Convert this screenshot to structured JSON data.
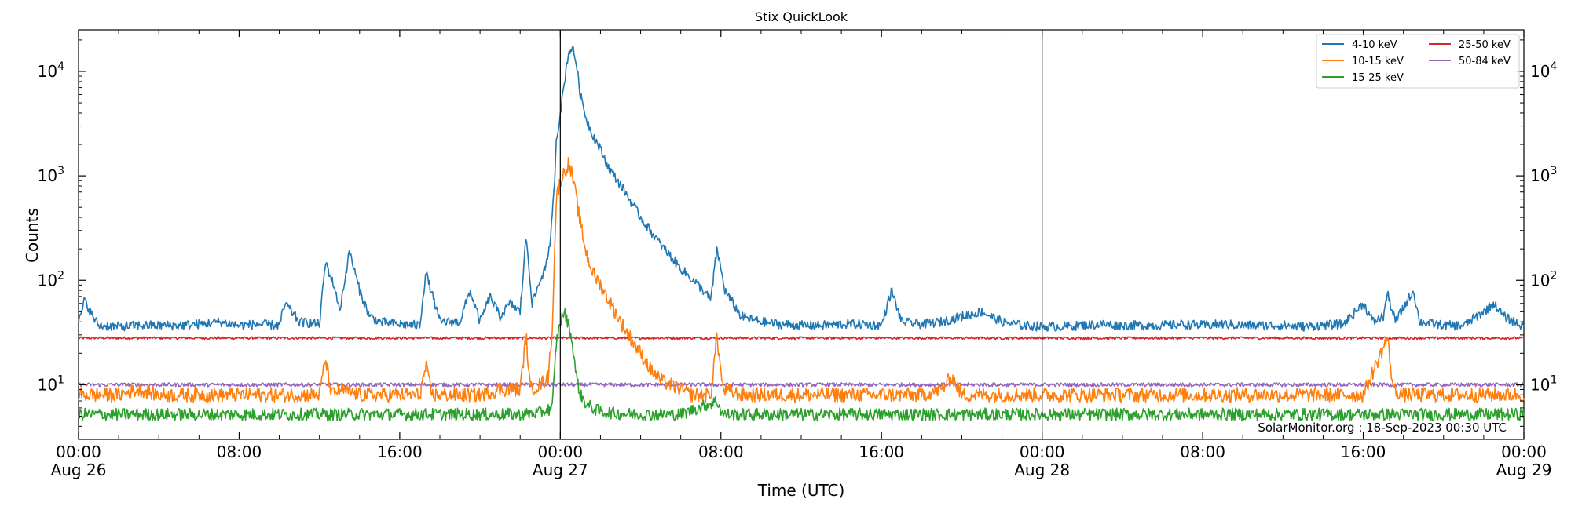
{
  "chart_data": {
    "type": "line",
    "title": "Stix QuickLook",
    "xlabel": "Time (UTC)",
    "ylabel": "Counts",
    "yscale": "log",
    "ylim": [
      3,
      25000
    ],
    "x_unit": "hours since Aug 26 00:00 UTC",
    "xlim": [
      0,
      72
    ],
    "x_ticks": [
      {
        "x": 0,
        "label": "00:00",
        "date": "Aug 26"
      },
      {
        "x": 8,
        "label": "08:00",
        "date": ""
      },
      {
        "x": 16,
        "label": "16:00",
        "date": ""
      },
      {
        "x": 24,
        "label": "00:00",
        "date": "Aug 27"
      },
      {
        "x": 32,
        "label": "08:00",
        "date": ""
      },
      {
        "x": 40,
        "label": "16:00",
        "date": ""
      },
      {
        "x": 48,
        "label": "00:00",
        "date": "Aug 28"
      },
      {
        "x": 56,
        "label": "08:00",
        "date": ""
      },
      {
        "x": 64,
        "label": "16:00",
        "date": ""
      },
      {
        "x": 72,
        "label": "00:00",
        "date": "Aug 29"
      }
    ],
    "y_ticks": [
      {
        "value": 10,
        "base": "10",
        "exp": "1"
      },
      {
        "value": 100,
        "base": "10",
        "exp": "2"
      },
      {
        "value": 1000,
        "base": "10",
        "exp": "3"
      },
      {
        "value": 10000,
        "base": "10",
        "exp": "4"
      }
    ],
    "vertical_lines_x": [
      24,
      48
    ],
    "legend_position": "top-right",
    "annotation": "SolarMonitor.org : 18-Sep-2023 00:30 UTC",
    "series": [
      {
        "name": "4-10 keV",
        "color": "#1f77b4",
        "points": [
          [
            0,
            38
          ],
          [
            0.3,
            65
          ],
          [
            0.7,
            45
          ],
          [
            1,
            37
          ],
          [
            2,
            36
          ],
          [
            3,
            37
          ],
          [
            4,
            37
          ],
          [
            5,
            37
          ],
          [
            6,
            38
          ],
          [
            7,
            40
          ],
          [
            8,
            37
          ],
          [
            9,
            38
          ],
          [
            10,
            37
          ],
          [
            10.3,
            60
          ],
          [
            11,
            40
          ],
          [
            12,
            38
          ],
          [
            12.3,
            150
          ],
          [
            12.8,
            80
          ],
          [
            13,
            50
          ],
          [
            13.5,
            190
          ],
          [
            14,
            80
          ],
          [
            14.5,
            45
          ],
          [
            15,
            40
          ],
          [
            16,
            38
          ],
          [
            17,
            37
          ],
          [
            17.3,
            120
          ],
          [
            18,
            40
          ],
          [
            19,
            40
          ],
          [
            19.5,
            80
          ],
          [
            20,
            40
          ],
          [
            20.5,
            70
          ],
          [
            21,
            45
          ],
          [
            21.5,
            60
          ],
          [
            22,
            50
          ],
          [
            22.3,
            270
          ],
          [
            22.6,
            60
          ],
          [
            23,
            100
          ],
          [
            23.4,
            160
          ],
          [
            23.6,
            400
          ],
          [
            23.7,
            800
          ],
          [
            23.8,
            2200
          ],
          [
            24,
            4000
          ],
          [
            24.4,
            15000
          ],
          [
            24.6,
            17000
          ],
          [
            24.8,
            12000
          ],
          [
            25,
            6000
          ],
          [
            25.3,
            3500
          ],
          [
            25.6,
            2500
          ],
          [
            26,
            1800
          ],
          [
            26.4,
            1200
          ],
          [
            27,
            820
          ],
          [
            28,
            400
          ],
          [
            29,
            220
          ],
          [
            30,
            130
          ],
          [
            31,
            85
          ],
          [
            31.5,
            65
          ],
          [
            31.8,
            200
          ],
          [
            32.2,
            80
          ],
          [
            33,
            45
          ],
          [
            34,
            40
          ],
          [
            35,
            38
          ],
          [
            36,
            37
          ],
          [
            37,
            37
          ],
          [
            38,
            38
          ],
          [
            39,
            38
          ],
          [
            40,
            37
          ],
          [
            40.5,
            80
          ],
          [
            41,
            40
          ],
          [
            42,
            38
          ],
          [
            43,
            40
          ],
          [
            44,
            45
          ],
          [
            45,
            50
          ],
          [
            46,
            40
          ],
          [
            47,
            37
          ],
          [
            48,
            36
          ],
          [
            49,
            36
          ],
          [
            50,
            37
          ],
          [
            51,
            38
          ],
          [
            52,
            37
          ],
          [
            53,
            37
          ],
          [
            54,
            37
          ],
          [
            55,
            38
          ],
          [
            56,
            37
          ],
          [
            57,
            38
          ],
          [
            58,
            37
          ],
          [
            59,
            37
          ],
          [
            60,
            37
          ],
          [
            61,
            36
          ],
          [
            62,
            37
          ],
          [
            63,
            38
          ],
          [
            64,
            60
          ],
          [
            64.5,
            40
          ],
          [
            65,
            45
          ],
          [
            65.2,
            75
          ],
          [
            65.6,
            40
          ],
          [
            66.5,
            80
          ],
          [
            66.8,
            40
          ],
          [
            68,
            37
          ],
          [
            69,
            37
          ],
          [
            70,
            50
          ],
          [
            70.5,
            60
          ],
          [
            71,
            45
          ],
          [
            72,
            36
          ]
        ]
      },
      {
        "name": "10-15 keV",
        "color": "#ff7f0e",
        "points": [
          [
            0,
            8
          ],
          [
            1,
            8
          ],
          [
            2,
            8
          ],
          [
            3,
            9
          ],
          [
            4,
            8
          ],
          [
            5,
            8
          ],
          [
            6,
            8
          ],
          [
            7,
            8
          ],
          [
            8,
            8
          ],
          [
            9,
            8
          ],
          [
            10,
            8
          ],
          [
            11,
            8
          ],
          [
            12,
            8
          ],
          [
            12.3,
            18
          ],
          [
            12.6,
            8
          ],
          [
            13,
            9
          ],
          [
            14,
            8
          ],
          [
            15,
            8
          ],
          [
            16,
            8
          ],
          [
            17,
            8
          ],
          [
            17.3,
            15
          ],
          [
            17.6,
            8
          ],
          [
            18,
            8
          ],
          [
            19,
            8
          ],
          [
            20,
            8
          ],
          [
            21,
            9
          ],
          [
            22,
            9
          ],
          [
            22.3,
            30
          ],
          [
            22.5,
            9
          ],
          [
            23,
            10
          ],
          [
            23.4,
            12
          ],
          [
            23.6,
            35
          ],
          [
            23.7,
            150
          ],
          [
            23.8,
            600
          ],
          [
            24,
            900
          ],
          [
            24.4,
            1300
          ],
          [
            24.6,
            1000
          ],
          [
            24.8,
            600
          ],
          [
            25,
            350
          ],
          [
            25.3,
            180
          ],
          [
            25.6,
            120
          ],
          [
            26,
            90
          ],
          [
            26.5,
            60
          ],
          [
            27,
            40
          ],
          [
            27.5,
            28
          ],
          [
            28,
            20
          ],
          [
            28.5,
            14
          ],
          [
            29,
            11
          ],
          [
            30,
            9
          ],
          [
            30.5,
            8
          ],
          [
            31,
            8
          ],
          [
            31.5,
            8
          ],
          [
            31.8,
            30
          ],
          [
            32.1,
            9
          ],
          [
            33,
            8
          ],
          [
            34,
            8
          ],
          [
            35,
            8
          ],
          [
            36,
            8
          ],
          [
            37,
            8
          ],
          [
            38,
            8
          ],
          [
            39,
            8
          ],
          [
            40,
            8
          ],
          [
            41,
            8
          ],
          [
            42,
            8
          ],
          [
            43,
            9
          ],
          [
            43.5,
            12
          ],
          [
            44,
            8
          ],
          [
            45,
            8
          ],
          [
            46,
            8
          ],
          [
            47,
            8
          ],
          [
            48,
            8
          ],
          [
            50,
            8
          ],
          [
            52,
            8
          ],
          [
            54,
            8
          ],
          [
            56,
            8
          ],
          [
            58,
            8
          ],
          [
            60,
            8
          ],
          [
            62,
            8
          ],
          [
            64,
            8
          ],
          [
            65.2,
            28
          ],
          [
            65.5,
            9
          ],
          [
            66,
            8
          ],
          [
            68,
            8
          ],
          [
            70,
            8
          ],
          [
            72,
            8
          ]
        ]
      },
      {
        "name": "15-25 keV",
        "color": "#2ca02c",
        "points": [
          [
            0,
            5.2
          ],
          [
            2,
            5.2
          ],
          [
            4,
            5.2
          ],
          [
            6,
            5.2
          ],
          [
            8,
            5.2
          ],
          [
            10,
            5.2
          ],
          [
            12,
            5.2
          ],
          [
            14,
            5.2
          ],
          [
            16,
            5.2
          ],
          [
            18,
            5.2
          ],
          [
            20,
            5.2
          ],
          [
            22,
            5.2
          ],
          [
            23,
            5.4
          ],
          [
            23.6,
            6
          ],
          [
            23.7,
            12
          ],
          [
            23.8,
            25
          ],
          [
            24,
            40
          ],
          [
            24.2,
            50
          ],
          [
            24.4,
            38
          ],
          [
            24.6,
            25
          ],
          [
            24.8,
            12
          ],
          [
            25,
            8
          ],
          [
            25.3,
            6.5
          ],
          [
            25.6,
            6
          ],
          [
            26,
            5.5
          ],
          [
            27,
            5.3
          ],
          [
            28,
            5.2
          ],
          [
            30,
            5.2
          ],
          [
            31.8,
            7
          ],
          [
            32.1,
            5.2
          ],
          [
            34,
            5.2
          ],
          [
            36,
            5.2
          ],
          [
            38,
            5.2
          ],
          [
            40,
            5.2
          ],
          [
            42,
            5.2
          ],
          [
            44,
            5.2
          ],
          [
            46,
            5.2
          ],
          [
            48,
            5.2
          ],
          [
            50,
            5.2
          ],
          [
            52,
            5.2
          ],
          [
            54,
            5.2
          ],
          [
            56,
            5.2
          ],
          [
            58,
            5.2
          ],
          [
            60,
            5.2
          ],
          [
            62,
            5.2
          ],
          [
            64,
            5.2
          ],
          [
            66,
            5.2
          ],
          [
            68,
            5.2
          ],
          [
            70,
            5.2
          ],
          [
            72,
            5.2
          ]
        ]
      },
      {
        "name": "25-50 keV",
        "color": "#d62728",
        "points": [
          [
            0,
            28
          ],
          [
            6,
            28
          ],
          [
            12,
            28
          ],
          [
            18,
            28
          ],
          [
            24,
            28
          ],
          [
            30,
            28
          ],
          [
            36,
            28
          ],
          [
            42,
            28
          ],
          [
            48,
            28
          ],
          [
            54,
            28
          ],
          [
            60,
            28
          ],
          [
            66,
            28
          ],
          [
            72,
            28
          ]
        ]
      },
      {
        "name": "50-84 keV",
        "color": "#9467bd",
        "points": [
          [
            0,
            10
          ],
          [
            6,
            10
          ],
          [
            12,
            10
          ],
          [
            18,
            10
          ],
          [
            24,
            10
          ],
          [
            30,
            10
          ],
          [
            36,
            10
          ],
          [
            42,
            10
          ],
          [
            48,
            10
          ],
          [
            54,
            10
          ],
          [
            60,
            10
          ],
          [
            66,
            10
          ],
          [
            72,
            10
          ]
        ]
      }
    ]
  }
}
